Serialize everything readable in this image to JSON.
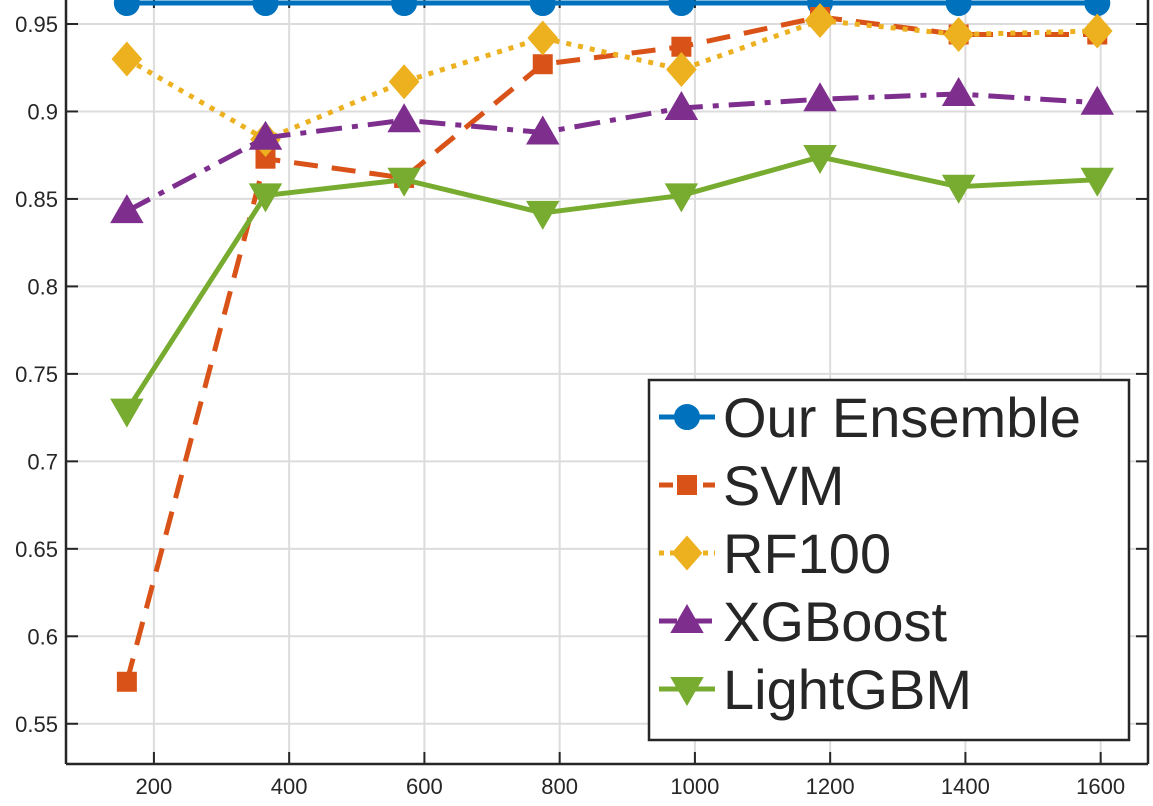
{
  "chart_data": {
    "type": "line",
    "title": "",
    "xlabel": "",
    "ylabel": "",
    "xlim": [
      70,
      1670
    ],
    "ylim": [
      0.527,
      0.966
    ],
    "grid": true,
    "legend_position": "bottom-right",
    "x": [
      160,
      365,
      570,
      775,
      980,
      1185,
      1390,
      1595
    ],
    "x_ticks": [
      200,
      400,
      600,
      800,
      1000,
      1200,
      1400,
      1600
    ],
    "x_tick_labels": [
      "200",
      "400",
      "600",
      "800",
      "1000",
      "1200",
      "1400",
      "1600"
    ],
    "y_ticks": [
      0.55,
      0.6,
      0.65,
      0.7,
      0.75,
      0.8,
      0.85,
      0.9,
      0.95
    ],
    "y_tick_labels": [
      "0.55",
      "0.6",
      "0.65",
      "0.7",
      "0.75",
      "0.8",
      "0.85",
      "0.9",
      "0.95"
    ],
    "series": [
      {
        "name": "Our Ensemble",
        "color": "#0072BD",
        "dash": "solid",
        "marker": "circle",
        "values": [
          0.962,
          0.962,
          0.962,
          0.962,
          0.962,
          0.962,
          0.962,
          0.962
        ]
      },
      {
        "name": "SVM",
        "color": "#D95319",
        "dash": "dashed",
        "marker": "square",
        "values": [
          0.574,
          0.873,
          0.862,
          0.927,
          0.937,
          0.954,
          0.944,
          0.944
        ]
      },
      {
        "name": "RF100",
        "color": "#EDB120",
        "dash": "dotted",
        "marker": "diamond",
        "values": [
          0.93,
          0.884,
          0.917,
          0.942,
          0.924,
          0.952,
          0.944,
          0.946
        ]
      },
      {
        "name": "XGBoost",
        "color": "#7E2F8E",
        "dash": "dashdot",
        "marker": "triangle-up",
        "values": [
          0.843,
          0.885,
          0.895,
          0.888,
          0.902,
          0.907,
          0.91,
          0.905
        ]
      },
      {
        "name": "LightGBM",
        "color": "#77AC30",
        "dash": "solid",
        "marker": "triangle-down",
        "values": [
          0.729,
          0.852,
          0.861,
          0.842,
          0.852,
          0.874,
          0.857,
          0.861
        ]
      }
    ]
  }
}
